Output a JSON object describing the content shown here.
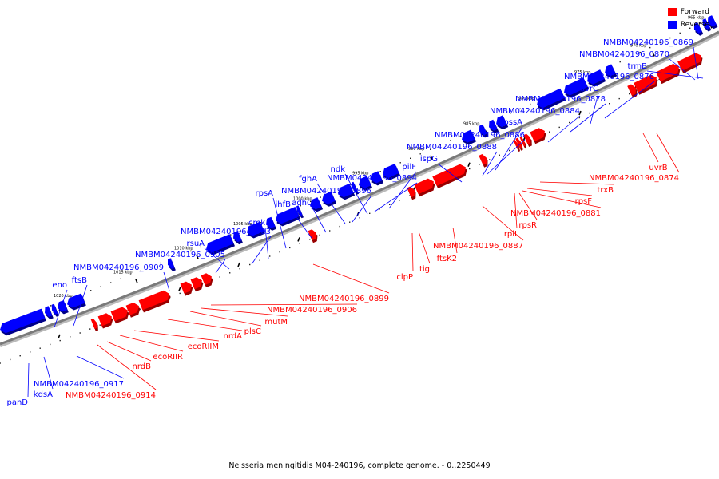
{
  "legend": {
    "forward": {
      "label": "Forward",
      "color": "#ff0000"
    },
    "reverse": {
      "label": "Reverse",
      "color": "#0000ff"
    }
  },
  "caption": "Neisseria meningitidis M04-240196, complete genome. - 0..2250449",
  "ticks": [
    "965 kbp",
    "970 kbp",
    "975 kbp",
    "980 kbp",
    "985 kbp",
    "990 kbp",
    "995 kbp",
    "1000 kbp",
    "1005 kbp",
    "1010 kbp",
    "1015 kbp",
    "1020 kbp"
  ],
  "reverse_labels": [
    "NMBM04240196_0869",
    "NMBM04240196_0870",
    "trmB",
    "NMBM04240196_0876",
    "uvrC",
    "NMBM04240196_0878",
    "NMBM04240196_0884",
    "pssA",
    "NMBM04240196_0886",
    "NMBM04240196_0888",
    "ispG",
    "pilF",
    "ndk",
    "NMBM04240196_0894",
    "fghA",
    "NMBM04240196_0896",
    "adhC",
    "ihfB",
    "rpsA",
    "cmk",
    "NMBM04240196_0903",
    "rsuA",
    "NMBM04240196_0905",
    "NMBM04240196_0909",
    "ftsB",
    "eno",
    "NMBM04240196_0917",
    "kdsA",
    "panD"
  ],
  "forward_labels": [
    "uvrB",
    "NMBM04240196_0874",
    "trxB",
    "rpsF",
    "NMBM04240196_0881",
    "rpsR",
    "rplI",
    "NMBM04240196_0887",
    "ftsK2",
    "tig",
    "clpP",
    "NMBM04240196_0899",
    "NMBM04240196_0906",
    "mutM",
    "plsC",
    "nrdA",
    "ecoRIIM",
    "ecoRIIR",
    "nrdB",
    "NMBM04240196_0914"
  ]
}
